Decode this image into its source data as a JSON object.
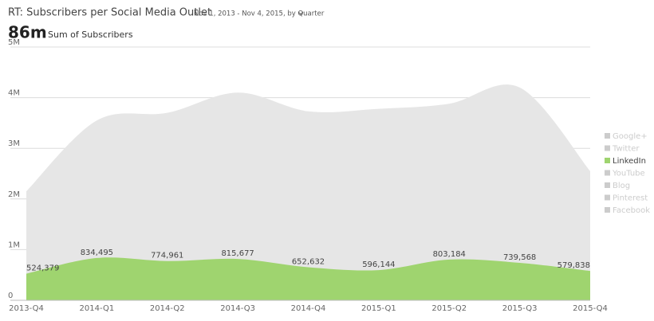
{
  "header": {
    "title": "RT: Subscribers per Social Media Outlet",
    "date_range": "Nov 1, 2013 - Nov 4, 2015, by Quarter",
    "total": "86m",
    "total_label": "Sum of Subscribers"
  },
  "chart_data": {
    "type": "area",
    "categories": [
      "2013-Q4",
      "2014-Q1",
      "2014-Q2",
      "2014-Q3",
      "2014-Q4",
      "2015-Q1",
      "2015-Q2",
      "2015-Q3",
      "2015-Q4"
    ],
    "total": {
      "color": "#e6e6e6",
      "values": [
        2150000,
        3550000,
        3700000,
        4100000,
        3730000,
        3780000,
        3880000,
        4200000,
        2550000
      ]
    },
    "series": [
      {
        "name": "Google+",
        "color": "#cccccc"
      },
      {
        "name": "Twitter",
        "color": "#cccccc"
      },
      {
        "name": "LinkedIn",
        "color": "#9fd46f",
        "values": [
          524379,
          834495,
          774961,
          815677,
          652632,
          596144,
          803184,
          739568,
          579838
        ],
        "value_labels": [
          "524,379",
          "834,495",
          "774,961",
          "815,677",
          "652,632",
          "596,144",
          "803,184",
          "739,568",
          "579,838"
        ]
      },
      {
        "name": "YouTube",
        "color": "#cccccc"
      },
      {
        "name": "Blog",
        "color": "#cccccc"
      },
      {
        "name": "Pinterest",
        "color": "#cccccc"
      },
      {
        "name": "Facebook",
        "color": "#cccccc"
      }
    ],
    "ylim": [
      0,
      5000000
    ],
    "yticks": [
      0,
      {
        "value": 1000000,
        "label": "1M"
      },
      {
        "value": 2000000,
        "label": "2M"
      },
      {
        "value": 3000000,
        "label": "3M"
      },
      {
        "value": 4000000,
        "label": "4M"
      },
      {
        "value": 5000000,
        "label": "5M"
      }
    ],
    "grid": true
  }
}
